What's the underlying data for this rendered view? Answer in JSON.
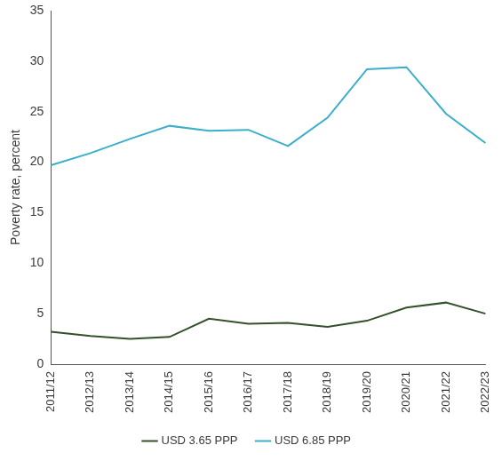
{
  "chart_data": {
    "type": "line",
    "y_label": "Poverty rate, percent",
    "categories": [
      "2011/12",
      "2012/13",
      "2013/14",
      "2014/15",
      "2015/16",
      "2016/17",
      "2017/18",
      "2018/19",
      "2019/20",
      "2020/21",
      "2021/22",
      "2022/23"
    ],
    "series": [
      {
        "name": "USD 3.65 PPP",
        "color": "#34502b",
        "values": [
          3.2,
          2.8,
          2.5,
          2.7,
          4.5,
          4.0,
          4.1,
          3.7,
          4.3,
          5.6,
          6.1,
          5.0
        ]
      },
      {
        "name": "USD 6.85 PPP",
        "color": "#3aaecb",
        "values": [
          19.7,
          20.9,
          22.3,
          23.6,
          23.1,
          23.2,
          21.6,
          24.4,
          29.2,
          29.4,
          24.8,
          21.9
        ]
      }
    ],
    "ylim": [
      0,
      35
    ],
    "yticks": [
      0,
      5,
      10,
      15,
      20,
      25,
      30,
      35
    ],
    "grid": false,
    "legend": "bottom"
  }
}
